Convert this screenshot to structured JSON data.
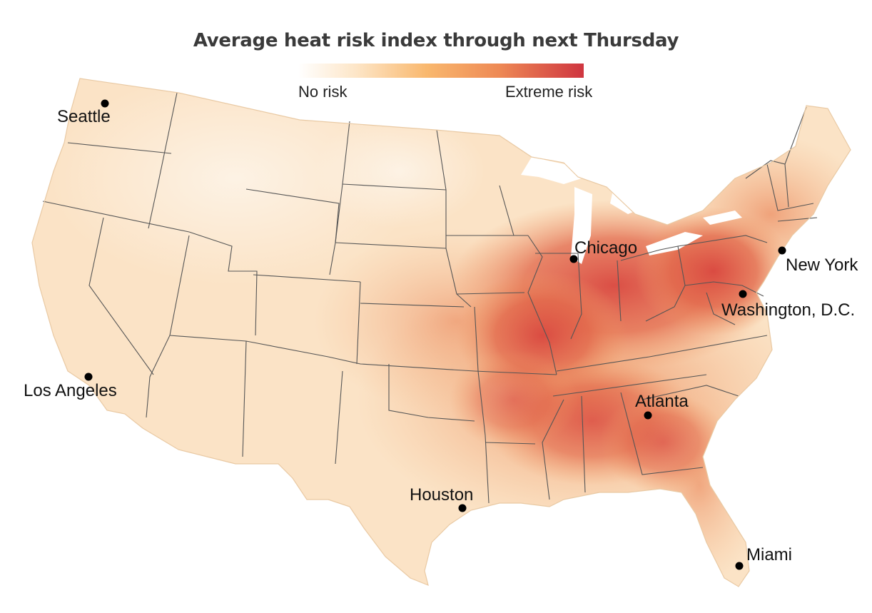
{
  "title": "Average heat risk index through next Thursday",
  "legend": {
    "min_label": "No risk",
    "max_label": "Extreme risk",
    "colors": [
      "#fdf6ec",
      "#fbd9aa",
      "#f7b873",
      "#ee8a55",
      "#df5a41",
      "#cf3540"
    ]
  },
  "colors": {
    "land_base": "#fbe3c6",
    "state_border": "#555555",
    "marker": "#000000"
  },
  "cities": [
    {
      "name": "Seattle",
      "key": "seattle"
    },
    {
      "name": "Los Angeles",
      "key": "los-angeles"
    },
    {
      "name": "Chicago",
      "key": "chicago"
    },
    {
      "name": "New York",
      "key": "new-york"
    },
    {
      "name": "Washington, D.C.",
      "key": "washington-dc"
    },
    {
      "name": "Atlanta",
      "key": "atlanta"
    },
    {
      "name": "Houston",
      "key": "houston"
    },
    {
      "name": "Miami",
      "key": "miami"
    }
  ]
}
